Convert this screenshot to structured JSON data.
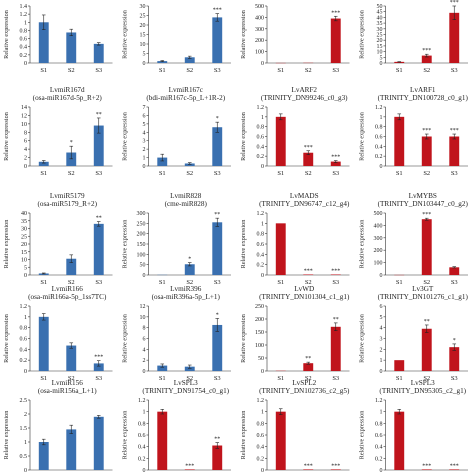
{
  "chart_data": [
    {
      "type": "bar",
      "title": [],
      "ylabel": "Relative expression",
      "categories": [
        "S1",
        "S2",
        "S3"
      ],
      "ylim": [
        0,
        1.4
      ],
      "yticks": [
        0,
        0.2,
        0.4,
        0.6,
        0.8,
        1,
        1.2,
        1.4
      ],
      "values": [
        1.0,
        0.75,
        0.47
      ],
      "errors": [
        0.18,
        0.08,
        0.03
      ],
      "sig": [
        "",
        "",
        ""
      ],
      "color": "#3a70b0"
    },
    {
      "type": "bar",
      "title": [],
      "ylabel": "Relative expression",
      "categories": [
        "S1",
        "S2",
        "S3"
      ],
      "ylim": [
        0,
        30
      ],
      "yticks": [
        0,
        5,
        10,
        15,
        20,
        25,
        30
      ],
      "values": [
        1,
        3,
        24
      ],
      "errors": [
        0.3,
        0.6,
        2
      ],
      "sig": [
        "",
        "",
        "***"
      ],
      "color": "#3a70b0"
    },
    {
      "type": "bar",
      "title": [],
      "ylabel": "Relative expression",
      "categories": [
        "S1",
        "S2",
        "S3"
      ],
      "ylim": [
        0,
        500
      ],
      "yticks": [
        0,
        100,
        200,
        300,
        400,
        500
      ],
      "values": [
        1,
        2,
        390
      ],
      "errors": [
        0,
        0,
        20
      ],
      "sig": [
        "",
        "",
        "***"
      ],
      "color": "#c0141c"
    },
    {
      "type": "bar",
      "title": [],
      "ylabel": "Relative expression",
      "categories": [
        "S1",
        "S2",
        "S3"
      ],
      "ylim": [
        0,
        50
      ],
      "yticks": [
        0,
        5,
        10,
        15,
        20,
        25,
        30,
        35,
        40,
        45,
        50
      ],
      "values": [
        1,
        6.5,
        44
      ],
      "errors": [
        0.2,
        1.2,
        6
      ],
      "sig": [
        "",
        "***",
        "***"
      ],
      "color": "#c0141c"
    },
    {
      "type": "bar",
      "title": [
        "LvmiR167d",
        "(osa-miR167d-5p_R+2)"
      ],
      "ylabel": "Relative expression",
      "categories": [
        "S1",
        "S2",
        "S3"
      ],
      "ylim": [
        0,
        14
      ],
      "yticks": [
        0,
        2,
        4,
        6,
        8,
        10,
        12,
        14
      ],
      "values": [
        1,
        3.2,
        9.6
      ],
      "errors": [
        0.3,
        1.5,
        1.8
      ],
      "sig": [
        "",
        "*",
        "**"
      ],
      "color": "#3a70b0"
    },
    {
      "type": "bar",
      "title": [
        "LvmiR167c",
        "(bdi-miR167c-5p_L+1R-2)"
      ],
      "ylabel": "Relative expression",
      "categories": [
        "S1",
        "S2",
        "S3"
      ],
      "ylim": [
        0,
        7
      ],
      "yticks": [
        0,
        1,
        2,
        3,
        4,
        5,
        6,
        7
      ],
      "values": [
        1,
        0.3,
        4.6
      ],
      "errors": [
        0.4,
        0.1,
        0.6
      ],
      "sig": [
        "",
        "",
        "*"
      ],
      "color": "#3a70b0"
    },
    {
      "type": "bar",
      "title": [
        "LvARF2",
        "(TRINITY_DN99246_c0_g3)"
      ],
      "ylabel": "Relative expression",
      "categories": [
        "S1",
        "S2",
        "S3"
      ],
      "ylim": [
        0,
        1.2
      ],
      "yticks": [
        0,
        0.2,
        0.4,
        0.6,
        0.8,
        1,
        1.2
      ],
      "values": [
        1.0,
        0.27,
        0.09
      ],
      "errors": [
        0.06,
        0.04,
        0.02
      ],
      "sig": [
        "",
        "***",
        "***"
      ],
      "color": "#c0141c"
    },
    {
      "type": "bar",
      "title": [
        "LvARF1",
        "(TRINITY_DN100728_c0_g1)"
      ],
      "ylabel": "Relative expression",
      "categories": [
        "S1",
        "S2",
        "S3"
      ],
      "ylim": [
        0,
        1.2
      ],
      "yticks": [
        0,
        0.2,
        0.4,
        0.6,
        0.8,
        1,
        1.2
      ],
      "values": [
        1.0,
        0.6,
        0.6
      ],
      "errors": [
        0.06,
        0.05,
        0.05
      ],
      "sig": [
        "",
        "***",
        "***"
      ],
      "color": "#c0141c"
    },
    {
      "type": "bar",
      "title": [
        "LvmiR5179",
        "(osa-miR5179_R+2)"
      ],
      "ylabel": "Relative expression",
      "categories": [
        "S1",
        "S2",
        "S3"
      ],
      "ylim": [
        0,
        40
      ],
      "yticks": [
        0,
        5,
        10,
        15,
        20,
        25,
        30,
        35,
        40
      ],
      "values": [
        1,
        10.5,
        33
      ],
      "errors": [
        0.3,
        2.5,
        1.5
      ],
      "sig": [
        "",
        "",
        "**"
      ],
      "color": "#3a70b0"
    },
    {
      "type": "bar",
      "title": [
        "LvmiR828",
        "(cme-miR828)"
      ],
      "ylabel": "Relative expression",
      "categories": [
        "S1",
        "S2",
        "S3"
      ],
      "ylim": [
        0,
        300
      ],
      "yticks": [
        0,
        50,
        100,
        150,
        200,
        250,
        300
      ],
      "values": [
        1,
        52,
        255
      ],
      "errors": [
        0,
        8,
        20
      ],
      "sig": [
        "",
        "*",
        "**"
      ],
      "color": "#3a70b0"
    },
    {
      "type": "bar",
      "title": [
        "LvMADS",
        "(TRINITY_DN96747_c12_g4)"
      ],
      "ylabel": "Relative expression",
      "categories": [
        "S1",
        "S2",
        "S3"
      ],
      "ylim": [
        0,
        1.2
      ],
      "yticks": [
        0,
        0.2,
        0.4,
        0.6,
        0.8,
        1,
        1.2
      ],
      "values": [
        1.0,
        0.01,
        0.01
      ],
      "errors": [
        0,
        0,
        0
      ],
      "sig": [
        "",
        "***",
        "***"
      ],
      "color": "#c0141c"
    },
    {
      "type": "bar",
      "title": [
        "LvMYBS",
        "(TRINITY_DN103447_c0_g2)"
      ],
      "ylabel": "Relative expression",
      "categories": [
        "S1",
        "S2",
        "S3"
      ],
      "ylim": [
        0,
        500
      ],
      "yticks": [
        0,
        100,
        200,
        300,
        400,
        500
      ],
      "values": [
        1,
        450,
        62
      ],
      "errors": [
        0,
        8,
        5
      ],
      "sig": [
        "",
        "***",
        ""
      ],
      "color": "#c0141c"
    },
    {
      "type": "bar",
      "title": [
        "LvmiR166",
        "(osa-miR166a-5p_1ss7TC)"
      ],
      "ylabel": "Relative expression",
      "categories": [
        "S1",
        "S2",
        "S3"
      ],
      "ylim": [
        0,
        1.2
      ],
      "yticks": [
        0,
        0.2,
        0.4,
        0.6,
        0.8,
        1,
        1.2
      ],
      "values": [
        1.0,
        0.47,
        0.14
      ],
      "errors": [
        0.06,
        0.05,
        0.05
      ],
      "sig": [
        "",
        "",
        "***"
      ],
      "color": "#3a70b0"
    },
    {
      "type": "bar",
      "title": [
        "LvmiR396",
        "(osa-miR396a-5p_L+1)"
      ],
      "ylabel": "Relative expression",
      "categories": [
        "S1",
        "S2",
        "S3"
      ],
      "ylim": [
        0,
        12
      ],
      "yticks": [
        0,
        2,
        4,
        6,
        8,
        10,
        12
      ],
      "values": [
        1,
        0.8,
        8.5
      ],
      "errors": [
        0.3,
        0.3,
        1.2
      ],
      "sig": [
        "",
        "",
        "*"
      ],
      "color": "#3a70b0"
    },
    {
      "type": "bar",
      "title": [
        "LvWD",
        "(TRINITY_DN101304_c1_g1)"
      ],
      "ylabel": "Relative expression",
      "categories": [
        "S1",
        "S2",
        "S3"
      ],
      "ylim": [
        0,
        250
      ],
      "yticks": [
        0,
        50,
        100,
        150,
        200,
        250
      ],
      "values": [
        1,
        30,
        170
      ],
      "errors": [
        0,
        4,
        15
      ],
      "sig": [
        "",
        "**",
        "**"
      ],
      "color": "#c0141c"
    },
    {
      "type": "bar",
      "title": [
        "Lv3GT",
        "(TRINITY_DN101276_c1_g1)"
      ],
      "ylabel": "Relative expression",
      "categories": [
        "S1",
        "S2",
        "S3"
      ],
      "ylim": [
        0,
        6
      ],
      "yticks": [
        0,
        1,
        2,
        3,
        4,
        5,
        6
      ],
      "values": [
        1,
        3.9,
        2.2
      ],
      "errors": [
        0,
        0.35,
        0.3
      ],
      "sig": [
        "",
        "**",
        "*"
      ],
      "color": "#c0141c"
    },
    {
      "type": "bar",
      "title": [
        "LvmiR156",
        "(osa-miR156a_L+1)"
      ],
      "ylabel": "Relative expression",
      "categories": [
        "S1",
        "S2",
        "S3"
      ],
      "ylim": [
        0,
        2.5
      ],
      "yticks": [
        0,
        0.5,
        1,
        1.5,
        2,
        2.5
      ],
      "values": [
        1.0,
        1.45,
        1.9
      ],
      "errors": [
        0.1,
        0.15,
        0.05
      ],
      "sig": [
        "",
        "",
        ""
      ],
      "color": "#3a70b0"
    },
    {
      "type": "bar",
      "title": [
        "LvSPL3",
        "(TRINITY_DN91754_c0_g1)"
      ],
      "ylabel": "Relative expression",
      "categories": [
        "S1",
        "S2",
        "S3"
      ],
      "ylim": [
        0,
        1.2
      ],
      "yticks": [
        0,
        0.2,
        0.4,
        0.6,
        0.8,
        1,
        1.2
      ],
      "values": [
        1.0,
        0.01,
        0.42
      ],
      "errors": [
        0.04,
        0,
        0.05
      ],
      "sig": [
        "",
        "***",
        "**"
      ],
      "color": "#c0141c"
    },
    {
      "type": "bar",
      "title": [
        "LvSPL2",
        "(TRINITY_DN102736_c2_g5)"
      ],
      "ylabel": "Relative expression",
      "categories": [
        "S1",
        "S2",
        "S3"
      ],
      "ylim": [
        0,
        1.2
      ],
      "yticks": [
        0,
        0.2,
        0.4,
        0.6,
        0.8,
        1,
        1.2
      ],
      "values": [
        1.0,
        0.01,
        0.01
      ],
      "errors": [
        0.05,
        0,
        0
      ],
      "sig": [
        "",
        "***",
        "***"
      ],
      "color": "#c0141c"
    },
    {
      "type": "bar",
      "title": [
        "LvSPL3",
        "(TRINITY_DN95305_c2_g1)"
      ],
      "ylabel": "Relative expression",
      "categories": [
        "S1",
        "S2",
        "S3"
      ],
      "ylim": [
        0,
        1.2
      ],
      "yticks": [
        0,
        0.2,
        0.4,
        0.6,
        0.8,
        1,
        1.2
      ],
      "values": [
        1.0,
        0.01,
        0.01
      ],
      "errors": [
        0.04,
        0,
        0
      ],
      "sig": [
        "",
        "***",
        "***"
      ],
      "color": "#c0141c"
    }
  ]
}
